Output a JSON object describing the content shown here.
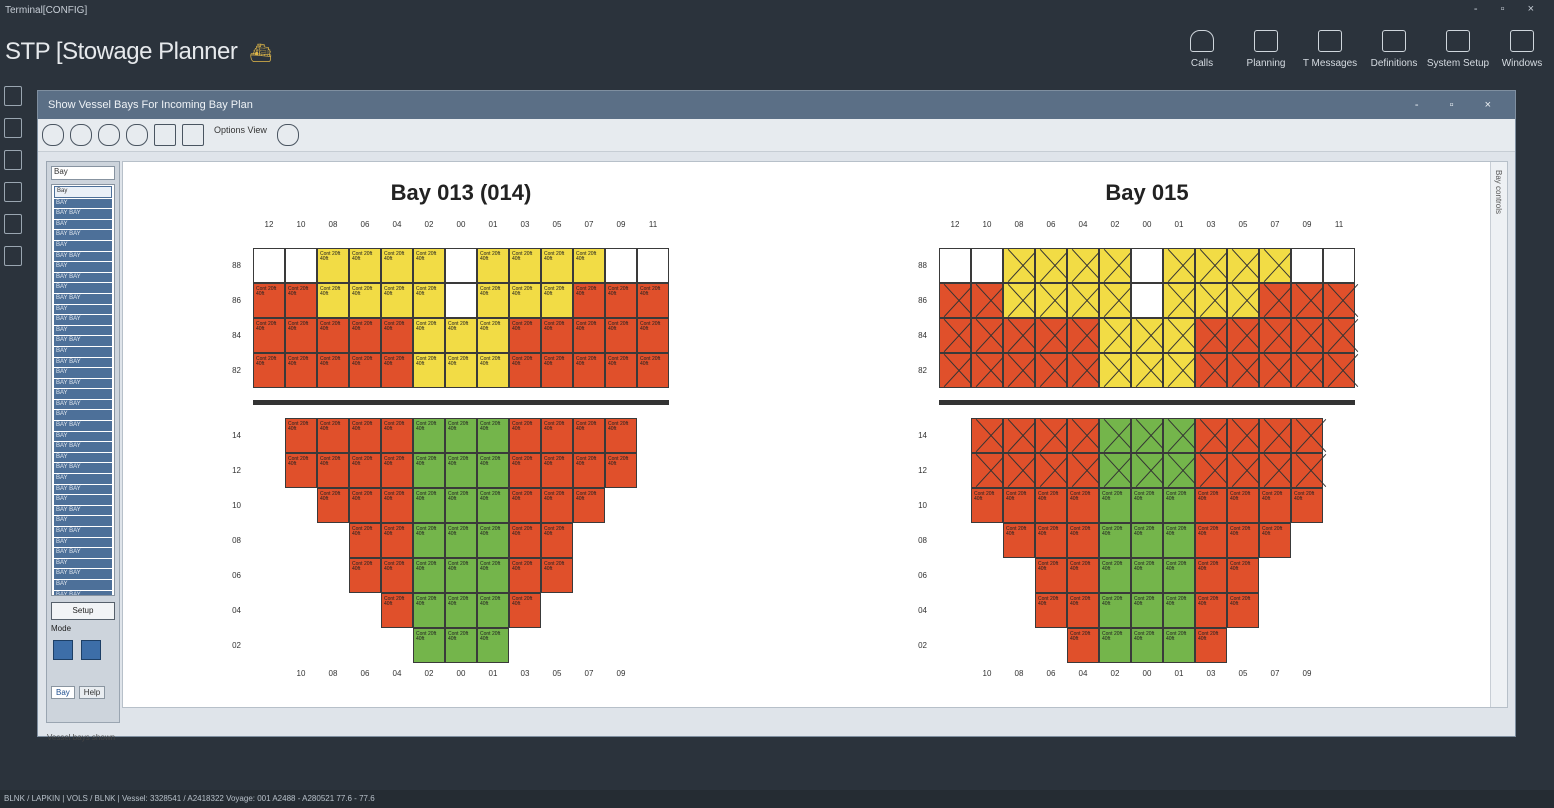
{
  "window": {
    "title": "Terminal[CONFIG]",
    "controls": "- ▫ ×"
  },
  "app": {
    "title": "STP [Stowage Planner"
  },
  "topnav": [
    "Calls",
    "Planning",
    "T Messages",
    "Definitions",
    "System Setup",
    "Windows"
  ],
  "subwindow": {
    "title": "Show Vessel Bays For Incoming Bay Plan",
    "options_label": "Options\nView",
    "bay_select_value": "Bay",
    "bay_list_selected": "Bay",
    "bay_list_items": [
      "BAY",
      "BAY  BAY",
      "BAY",
      "BAY  BAY",
      "BAY",
      "BAY  BAY",
      "BAY",
      "BAY  BAY",
      "BAY",
      "BAY  BAY",
      "BAY",
      "BAY  BAY",
      "BAY",
      "BAY  BAY",
      "BAY",
      "BAY  BAY",
      "BAY",
      "BAY  BAY",
      "BAY",
      "BAY  BAY",
      "BAY",
      "BAY  BAY",
      "BAY",
      "BAY  BAY",
      "BAY",
      "BAY  BAY",
      "BAY",
      "BAY  BAY",
      "BAY",
      "BAY  BAY",
      "BAY",
      "BAY  BAY",
      "BAY",
      "BAY  BAY",
      "BAY",
      "BAY  BAY",
      "BAY",
      "BAY  BAY"
    ],
    "button_label": "Setup",
    "mode_label": "Mode",
    "tabs": [
      "Bay",
      "Help"
    ],
    "status": "Vessel bays shown",
    "right_strip_label": "Bay controls"
  },
  "colors": {
    "red": "#e0502b",
    "yellow": "#f2dc45",
    "green": "#74b54b",
    "empty": "#ffffff"
  },
  "bays": [
    {
      "title": "Bay 013 (014)",
      "crossed": false,
      "deck_columns": [
        "12",
        "10",
        "08",
        "06",
        "04",
        "02",
        "00",
        "01",
        "03",
        "05",
        "07",
        "09",
        "11"
      ],
      "hold_columns": [
        "10",
        "08",
        "06",
        "04",
        "02",
        "00",
        "01",
        "03",
        "05",
        "07",
        "09"
      ],
      "deck_tiers": [
        "88",
        "86",
        "84",
        "82"
      ],
      "hold_tiers": [
        "14",
        "12",
        "10",
        "08",
        "06",
        "04",
        "02"
      ],
      "deck_rows": [
        "wwyyyywyyyyww",
        "rryyyywyyyrrr",
        "rrrrryyyrrrrr",
        "rrrrryyyrrrrr"
      ],
      "hold_rows": [
        "rrrrgggrrrr",
        "rrrrgggrrrr",
        ".rrrgggrrr.",
        "..rrgggrr..",
        "..rrgggrr..",
        "...rgggr...",
        "....ggg...."
      ],
      "cell_label": "Cont 20ft 40ft"
    },
    {
      "title": "Bay 015",
      "crossed": true,
      "deck_columns": [
        "12",
        "10",
        "08",
        "06",
        "04",
        "02",
        "00",
        "01",
        "03",
        "05",
        "07",
        "09",
        "11"
      ],
      "hold_columns": [
        "10",
        "08",
        "06",
        "04",
        "02",
        "00",
        "01",
        "03",
        "05",
        "07",
        "09"
      ],
      "deck_tiers": [
        "88",
        "86",
        "84",
        "82"
      ],
      "hold_tiers": [
        "14",
        "12",
        "10",
        "08",
        "06",
        "04",
        "02"
      ],
      "deck_rows": [
        "wwyyyywyyyyww",
        "rryyyywyyyrrr",
        "rrrrryyyrrrrr",
        "rrrrryyyrrrrr"
      ],
      "hold_rows": [
        "rrrrgggrrrr",
        "rrrrgggrrrr",
        "rrrrgggrrrr",
        ".rrrgggrrr.",
        "..rrgggrr..",
        "..rrgggrr..",
        "...rgggr..."
      ],
      "cell_label": "Cont 20ft 40ft"
    }
  ],
  "statusbar": "BLNK / LAPKIN | VOLS / BLNK | Vessel: 3328541 / A2418322  Voyage: 001  A2488 - A280521  77.6 - 77.6"
}
